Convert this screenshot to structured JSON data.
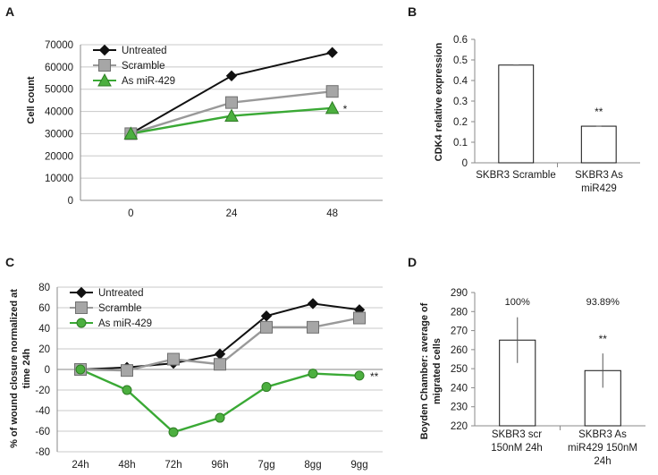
{
  "chart_data": [
    {
      "panel": "A",
      "type": "line",
      "categories": [
        "0",
        "24",
        "48"
      ],
      "ylabel": "Cell count",
      "ylim": [
        0,
        70000
      ],
      "yticks": [
        0,
        10000,
        20000,
        30000,
        40000,
        50000,
        60000,
        70000
      ],
      "grid": true,
      "legend_position": "top-left",
      "series": [
        {
          "name": "Untreated",
          "values": [
            30000,
            56000,
            66500
          ],
          "color": "#111111",
          "marker": "diamond"
        },
        {
          "name": "Scramble",
          "values": [
            30000,
            44000,
            49000
          ],
          "color": "#999999",
          "marker": "square"
        },
        {
          "name": "As miR-429",
          "values": [
            30000,
            38000,
            41500
          ],
          "color": "#3aa935",
          "marker": "triangle"
        }
      ],
      "annotations": [
        {
          "text": "*",
          "series": 2,
          "index": 2
        }
      ]
    },
    {
      "panel": "B",
      "type": "bar",
      "categories": [
        "SKBR3 Scramble",
        "SKBR3 As miR429"
      ],
      "values": [
        0.475,
        0.178
      ],
      "ylabel": "CDK4 relative expression",
      "ylim": [
        0,
        0.6
      ],
      "yticks": [
        "0",
        "0.1",
        "0.2",
        "0.3",
        "0.4",
        "0.5",
        "0.6"
      ],
      "grid": false,
      "annotations": [
        {
          "text": "**",
          "index": 1
        }
      ]
    },
    {
      "panel": "C",
      "type": "line",
      "categories": [
        "24h",
        "48h",
        "72h",
        "96h",
        "7gg",
        "8gg",
        "9gg"
      ],
      "ylabel": "% of wound closure normalized at time 24h",
      "ylim": [
        -80,
        80
      ],
      "yticks": [
        -80,
        -60,
        -40,
        -20,
        0,
        20,
        40,
        60,
        80
      ],
      "grid": true,
      "legend_position": "top-left",
      "series": [
        {
          "name": "Untreated",
          "values": [
            0,
            2,
            6,
            15,
            52,
            64,
            58
          ],
          "color": "#111111",
          "marker": "diamond"
        },
        {
          "name": "Scramble",
          "values": [
            0,
            -1,
            10,
            5,
            41,
            41,
            50
          ],
          "color": "#999999",
          "marker": "square"
        },
        {
          "name": "As  miR-429",
          "values": [
            0,
            -20,
            -61,
            -47,
            -17,
            -4,
            -6
          ],
          "color": "#3aa935",
          "marker": "circle"
        }
      ],
      "annotations": [
        {
          "text": "**",
          "series": 2,
          "index": 6
        }
      ]
    },
    {
      "panel": "D",
      "type": "bar",
      "categories": [
        "SKBR3 scr 150nM 24h",
        "SKBR3 As miR429 150nM 24h"
      ],
      "values": [
        265,
        249
      ],
      "errors": [
        12,
        9
      ],
      "ylabel": "Boyden Chamber: average of migrated cells",
      "ylim": [
        220,
        290
      ],
      "yticks": [
        220,
        230,
        240,
        250,
        260,
        270,
        280,
        290
      ],
      "grid": false,
      "bar_labels": [
        "100%",
        "93.89%"
      ],
      "annotations": [
        {
          "text": "**",
          "index": 1
        }
      ]
    }
  ],
  "labels": {
    "A": "A",
    "B": "B",
    "C": "C",
    "D": "D",
    "panel_a_ylabel": "Cell count",
    "panel_b_ylabel": "CDK4 relative expression",
    "panel_c_ylabel_line1": "% of wound closure normalized at",
    "panel_c_ylabel_line2": "time 24h",
    "panel_d_ylabel_line1": "Boyden Chamber: average of",
    "panel_d_ylabel_line2": "migrated cells",
    "panel_b_cat1": "SKBR3 Scramble",
    "panel_b_cat2_line1": "SKBR3 As",
    "panel_b_cat2_line2": "miR429",
    "panel_d_cat1_line1": "SKBR3 scr",
    "panel_d_cat1_line2": "150nM 24h",
    "panel_d_cat2_line1": "SKBR3 As",
    "panel_d_cat2_line2": "miR429 150nM",
    "panel_d_cat2_line3": "24h"
  }
}
